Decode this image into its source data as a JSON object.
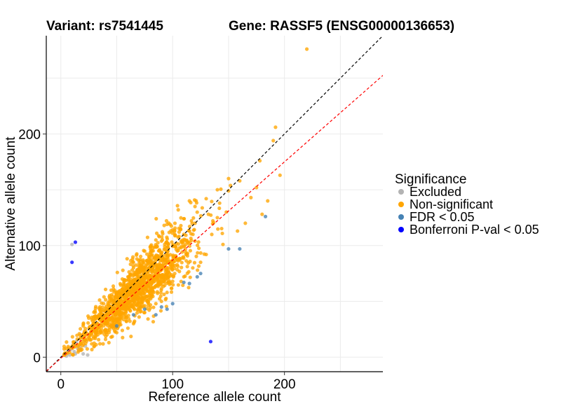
{
  "chart_data": {
    "type": "scatter",
    "title_left": "Variant: rs7541445",
    "title_right": "Gene: RASSF5 (ENSG00000136653)",
    "xlabel": "Reference allele count",
    "ylabel": "Alternative allele count",
    "xlim": [
      -13,
      288
    ],
    "ylim": [
      -13,
      288
    ],
    "x_ticks": [
      0,
      100,
      200
    ],
    "y_ticks": [
      0,
      100,
      200
    ],
    "grid": true,
    "legend_placement": "right",
    "legend_title": "Significance",
    "reference_lines": [
      {
        "name": "identity",
        "slope": 1,
        "intercept": 0,
        "color": "#000000",
        "dash": true
      },
      {
        "name": "fit",
        "slope": 0.88,
        "intercept": -1,
        "color": "#ff0000",
        "dash": true
      }
    ],
    "series": [
      {
        "name": "Excluded",
        "color": "#b3b3b3",
        "points": [
          [
            10,
            101
          ],
          [
            8,
            2
          ],
          [
            12,
            5
          ],
          [
            15,
            8
          ],
          [
            18,
            12
          ],
          [
            20,
            3
          ],
          [
            22,
            10
          ],
          [
            6,
            4
          ],
          [
            14,
            14
          ],
          [
            16,
            6
          ],
          [
            9,
            7
          ],
          [
            19,
            18
          ],
          [
            24,
            2
          ],
          [
            11,
            11
          ],
          [
            17,
            9
          ],
          [
            13,
            3
          ],
          [
            5,
            1
          ],
          [
            21,
            15
          ],
          [
            7,
            6
          ],
          [
            25,
            20
          ]
        ]
      },
      {
        "name": "Non-significant",
        "color": "#ffa500",
        "generated_count": 1400,
        "points": [
          [
            220,
            276
          ],
          [
            192,
            206
          ],
          [
            190,
            194
          ],
          [
            178,
            176
          ],
          [
            196,
            163
          ],
          [
            160,
            158
          ],
          [
            150,
            160
          ],
          [
            175,
            152
          ],
          [
            185,
            140
          ],
          [
            180,
            128
          ],
          [
            170,
            143
          ],
          [
            148,
            130
          ],
          [
            165,
            120
          ],
          [
            140,
            125
          ],
          [
            158,
            113
          ],
          [
            135,
            110
          ],
          [
            145,
            101
          ],
          [
            130,
            92
          ],
          [
            125,
            85
          ],
          [
            120,
            104
          ],
          [
            118,
            80
          ],
          [
            110,
            72
          ],
          [
            100,
            68
          ],
          [
            95,
            58
          ],
          [
            90,
            50
          ],
          [
            85,
            48
          ],
          [
            80,
            44
          ],
          [
            75,
            40
          ],
          [
            70,
            36
          ],
          [
            65,
            30
          ],
          [
            60,
            26
          ],
          [
            55,
            24
          ],
          [
            50,
            22
          ],
          [
            45,
            18
          ],
          [
            40,
            16
          ],
          [
            35,
            12
          ],
          [
            30,
            10
          ],
          [
            30,
            30
          ],
          [
            40,
            44
          ],
          [
            50,
            58
          ],
          [
            60,
            72
          ],
          [
            70,
            84
          ],
          [
            80,
            92
          ],
          [
            90,
            104
          ],
          [
            100,
            114
          ],
          [
            110,
            124
          ],
          [
            120,
            135
          ],
          [
            130,
            142
          ],
          [
            140,
            150
          ],
          [
            150,
            149
          ],
          [
            35,
            45
          ],
          [
            45,
            60
          ],
          [
            55,
            70
          ],
          [
            65,
            80
          ],
          [
            75,
            95
          ],
          [
            85,
            105
          ],
          [
            20,
            28
          ],
          [
            25,
            35
          ],
          [
            105,
            132
          ],
          [
            115,
            140
          ],
          [
            95,
            119
          ],
          [
            88,
            108
          ],
          [
            132,
            128
          ],
          [
            142,
            138
          ],
          [
            62,
            42
          ],
          [
            72,
            52
          ],
          [
            82,
            62
          ],
          [
            92,
            72
          ],
          [
            102,
            82
          ],
          [
            112,
            92
          ],
          [
            60,
            60
          ],
          [
            70,
            70
          ],
          [
            80,
            80
          ],
          [
            90,
            90
          ],
          [
            100,
            100
          ],
          [
            110,
            110
          ],
          [
            120,
            120
          ]
        ]
      },
      {
        "name": "FDR < 0.05",
        "color": "#4682b4",
        "points": [
          [
            183,
            126
          ],
          [
            160,
            97
          ],
          [
            150,
            97
          ],
          [
            125,
            75
          ],
          [
            122,
            72
          ],
          [
            115,
            66
          ],
          [
            110,
            67
          ],
          [
            100,
            48
          ],
          [
            95,
            43
          ],
          [
            90,
            45
          ],
          [
            85,
            38
          ],
          [
            75,
            43
          ],
          [
            65,
            38
          ],
          [
            50,
            28
          ]
        ]
      },
      {
        "name": "Bonferroni P-val < 0.05",
        "color": "#0000ff",
        "points": [
          [
            13,
            103
          ],
          [
            10,
            85
          ],
          [
            134,
            14
          ]
        ]
      }
    ]
  }
}
